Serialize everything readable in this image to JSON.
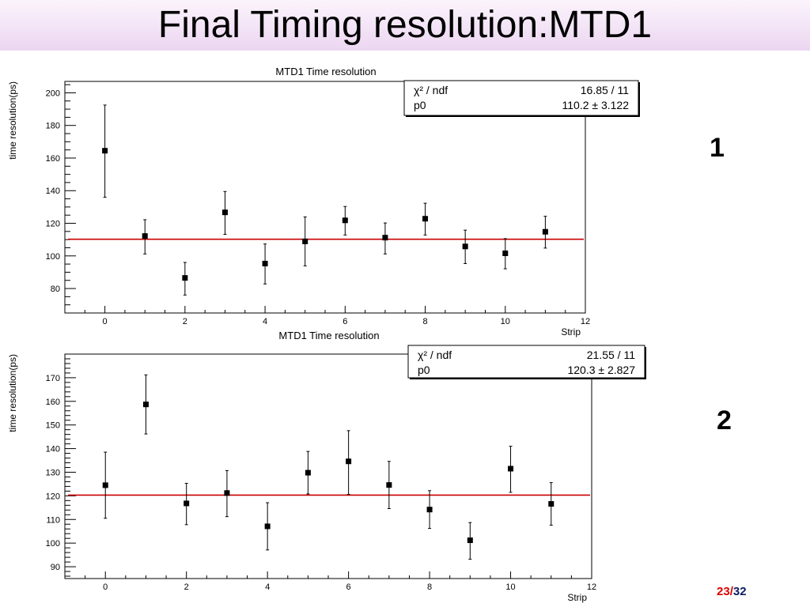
{
  "slide": {
    "title": "Final Timing resolution:MTD1",
    "panel_labels": [
      "1",
      "2"
    ],
    "page": {
      "current": "23",
      "separator": "/",
      "total": "32"
    },
    "colors": {
      "page_current": "#dd0000",
      "page_total": "#0a1a66",
      "fit_line": "#cc0000",
      "markers": "#000000"
    }
  },
  "chart_data": [
    {
      "type": "scatter",
      "title": "MTD1 Time resolution",
      "xlabel": "Strip",
      "ylabel": "time resolution(ps)",
      "xlim": [
        -1,
        12
      ],
      "ylim": [
        65,
        207
      ],
      "x_ticks": [
        0,
        2,
        4,
        6,
        8,
        10,
        12
      ],
      "y_ticks": [
        80,
        100,
        120,
        140,
        160,
        180,
        200
      ],
      "x": [
        0,
        1,
        2,
        3,
        4,
        5,
        6,
        7,
        8,
        9,
        10,
        11
      ],
      "y": [
        164.5,
        112.2,
        86.5,
        126.7,
        95.3,
        108.9,
        121.8,
        111.2,
        122.8,
        105.8,
        101.6,
        114.8
      ],
      "y_err_low": [
        28.5,
        11,
        10.5,
        13.5,
        12.5,
        15,
        9,
        10,
        10,
        10.5,
        9.5,
        10
      ],
      "y_err_high": [
        28,
        10,
        9.5,
        12.8,
        12,
        15,
        8.5,
        9,
        9.5,
        10,
        9,
        9.5
      ],
      "fit": {
        "p0": 110.2,
        "label": "p0",
        "value": "110.2 ± 3.122",
        "chi2_ndf": "16.85 / 11"
      },
      "stats_header": "χ² / ndf",
      "grid": false,
      "stats_box_position": "top-right"
    },
    {
      "type": "scatter",
      "title": "MTD1 Time resolution",
      "xlabel": "Strip",
      "ylabel": "time resolution(ps)",
      "xlim": [
        -1,
        12
      ],
      "ylim": [
        85,
        180
      ],
      "x_ticks": [
        0,
        2,
        4,
        6,
        8,
        10,
        12
      ],
      "y_ticks": [
        90,
        100,
        110,
        120,
        130,
        140,
        150,
        160,
        170
      ],
      "x": [
        0,
        1,
        2,
        3,
        4,
        5,
        6,
        7,
        8,
        9,
        10,
        11
      ],
      "y": [
        124.5,
        158.7,
        116.8,
        121.2,
        107.1,
        129.8,
        134.6,
        124.6,
        114.2,
        101.2,
        131.5,
        116.6
      ],
      "y_err_low": [
        14,
        12.5,
        9,
        10,
        10,
        9,
        14,
        10,
        8,
        8,
        10,
        9
      ],
      "y_err_high": [
        14,
        12.5,
        8.5,
        9.5,
        10,
        9,
        13,
        10,
        8,
        7.5,
        9.5,
        9
      ],
      "fit": {
        "p0": 120.3,
        "label": "p0",
        "value": "120.3 ± 2.827",
        "chi2_ndf": "21.55 / 11"
      },
      "stats_header": "χ² / ndf",
      "grid": false,
      "stats_box_position": "top-right"
    }
  ]
}
